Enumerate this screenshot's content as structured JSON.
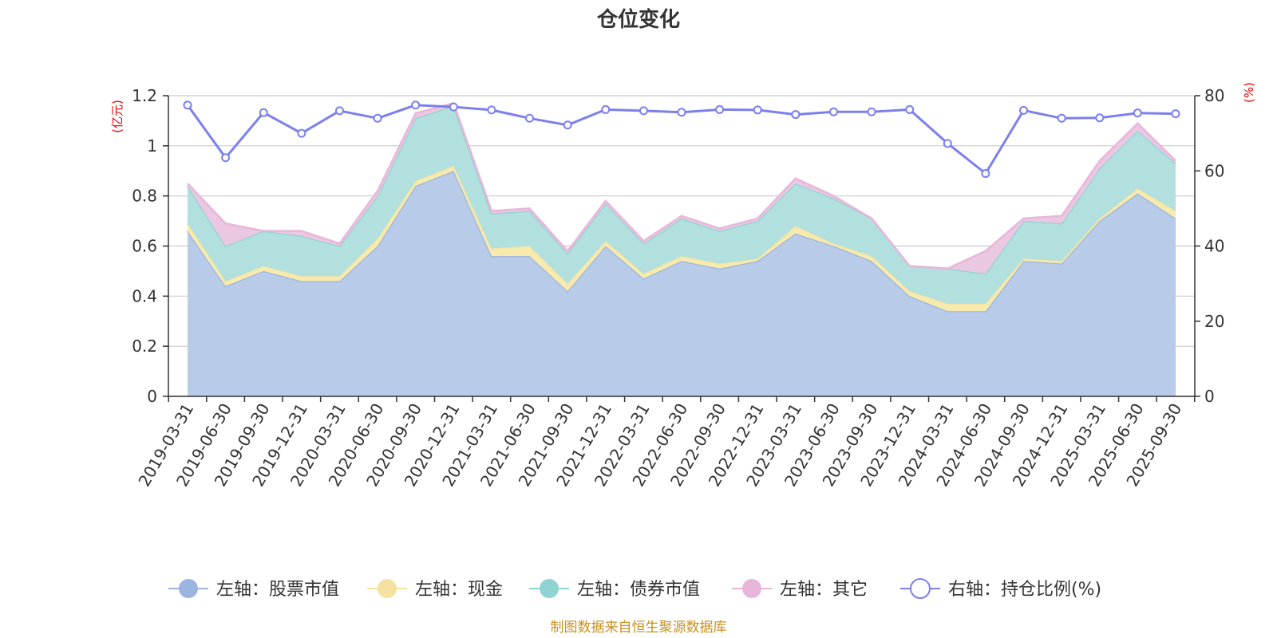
{
  "title": "仓位变化",
  "source": "制图数据来自恒生聚源数据库",
  "chart_data": {
    "type": "area",
    "stacked": true,
    "left_axis_unit": "(亿元)",
    "right_axis_unit": "(%)",
    "left_ylim": [
      0,
      1.2
    ],
    "left_ticks": [
      "0",
      "0.2",
      "0.4",
      "0.6",
      "0.8",
      "1",
      "1.2"
    ],
    "right_ylim": [
      0,
      80
    ],
    "right_ticks": [
      "0",
      "20",
      "40",
      "60",
      "80"
    ],
    "grid": true,
    "legend_position": "bottom",
    "categories": [
      "2019-03-31",
      "2019-06-30",
      "2019-09-30",
      "2019-12-31",
      "2020-03-31",
      "2020-06-30",
      "2020-09-30",
      "2020-12-31",
      "2021-03-31",
      "2021-06-30",
      "2021-09-30",
      "2021-12-31",
      "2022-03-31",
      "2022-06-30",
      "2022-09-30",
      "2022-12-31",
      "2023-03-31",
      "2023-06-30",
      "2023-09-30",
      "2023-12-31",
      "2024-03-31",
      "2024-06-30",
      "2024-09-30",
      "2024-12-31",
      "2025-03-31",
      "2025-06-30",
      "2025-09-30"
    ],
    "series": [
      {
        "name": "左轴：股票市值",
        "axis": "left",
        "color": "#9bb4e0",
        "fill": "#b8cbe9",
        "values": [
          0.66,
          0.44,
          0.5,
          0.46,
          0.46,
          0.6,
          0.84,
          0.9,
          0.56,
          0.56,
          0.42,
          0.6,
          0.47,
          0.54,
          0.51,
          0.54,
          0.65,
          0.6,
          0.54,
          0.4,
          0.34,
          0.34,
          0.54,
          0.53,
          0.7,
          0.81,
          0.71
        ]
      },
      {
        "name": "左轴：现金",
        "axis": "left",
        "color": "#f5e2a0",
        "fill": "#f7eaad",
        "values": [
          0.03,
          0.02,
          0.02,
          0.02,
          0.02,
          0.03,
          0.02,
          0.02,
          0.03,
          0.04,
          0.03,
          0.02,
          0.02,
          0.02,
          0.02,
          0.01,
          0.03,
          0.01,
          0.02,
          0.02,
          0.03,
          0.03,
          0.01,
          0.01,
          0.01,
          0.02,
          0.03
        ]
      },
      {
        "name": "左轴：债券市值",
        "axis": "left",
        "color": "#8fd4d2",
        "fill": "#b2e0de",
        "values": [
          0.15,
          0.14,
          0.14,
          0.16,
          0.12,
          0.17,
          0.25,
          0.24,
          0.14,
          0.14,
          0.12,
          0.15,
          0.12,
          0.15,
          0.13,
          0.15,
          0.17,
          0.18,
          0.15,
          0.1,
          0.14,
          0.12,
          0.15,
          0.15,
          0.2,
          0.23,
          0.19
        ]
      },
      {
        "name": "左轴：其它",
        "axis": "left",
        "color": "#e8b6da",
        "fill": "#ebc8e1",
        "values": [
          0.01,
          0.09,
          0.0,
          0.02,
          0.01,
          0.02,
          0.02,
          0.01,
          0.01,
          0.01,
          0.01,
          0.01,
          0.01,
          0.01,
          0.01,
          0.01,
          0.02,
          0.01,
          0.0,
          0.0,
          0.0,
          0.09,
          0.01,
          0.03,
          0.03,
          0.03,
          0.01
        ]
      },
      {
        "name": "右轴：持仓比例(%)",
        "axis": "right",
        "color": "#7b80ee",
        "values": [
          77.5,
          63.5,
          75.5,
          70,
          76,
          74,
          77.5,
          77,
          76.2,
          74,
          72.2,
          76.3,
          76,
          75.6,
          76.3,
          76.2,
          75,
          75.7,
          75.7,
          76.3,
          67.3,
          59.3,
          76.1,
          74,
          74.1,
          75.4,
          75.2
        ]
      }
    ]
  }
}
